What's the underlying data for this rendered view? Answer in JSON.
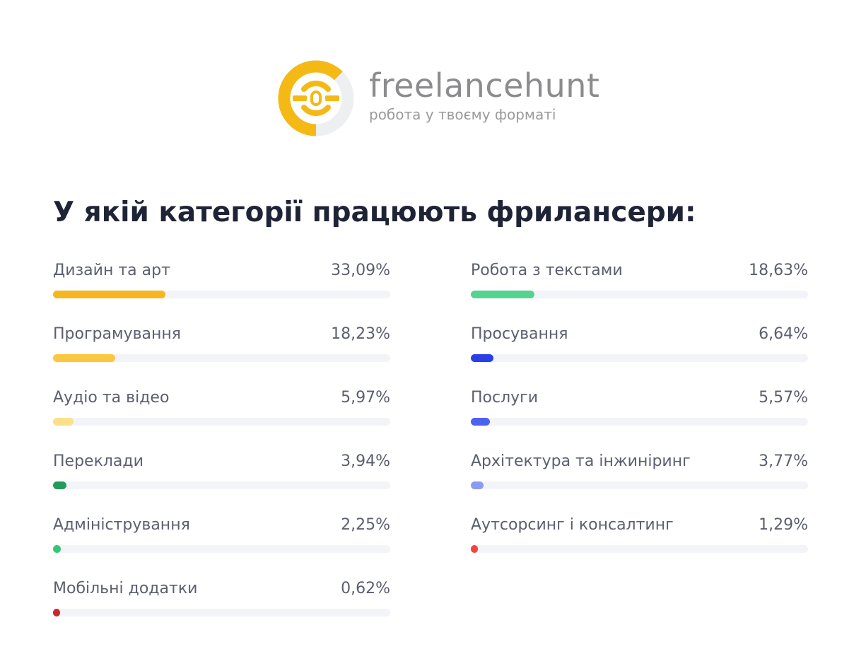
{
  "brand": {
    "name": "freelancehunt",
    "tagline": "робота у твоєму форматі",
    "colors": {
      "accent": "#f5b915",
      "ring": "#eeeff1",
      "text": "#8c8c8e"
    }
  },
  "chart_data": {
    "type": "bar",
    "title": "У якій категорії працюють фрилансери:",
    "unit": "%",
    "xlim": [
      0,
      100
    ],
    "columns": [
      {
        "items": [
          {
            "label": "Дизайн та арт",
            "value": 33.09,
            "display": "33,09%",
            "color": "#f5b620"
          },
          {
            "label": "Програмування",
            "value": 18.23,
            "display": "18,23%",
            "color": "#fdc640"
          },
          {
            "label": "Аудіо та відео",
            "value": 5.97,
            "display": "5,97%",
            "color": "#fde08a"
          },
          {
            "label": "Переклади",
            "value": 3.94,
            "display": "3,94%",
            "color": "#239b5a"
          },
          {
            "label": "Адміністрування",
            "value": 2.25,
            "display": "2,25%",
            "color": "#33c774"
          },
          {
            "label": "Мобільні додатки",
            "value": 0.62,
            "display": "0,62%",
            "color": "#c62a2a"
          }
        ]
      },
      {
        "items": [
          {
            "label": "Робота з текстами",
            "value": 18.63,
            "display": "18,63%",
            "color": "#55d48f"
          },
          {
            "label": "Просування",
            "value": 6.64,
            "display": "6,64%",
            "color": "#2a3fe8"
          },
          {
            "label": "Послуги",
            "value": 5.57,
            "display": "5,57%",
            "color": "#4b63ee"
          },
          {
            "label": "Архітектура та інжиніринг",
            "value": 3.77,
            "display": "3,77%",
            "color": "#8a9cf0"
          },
          {
            "label": "Аутсорсинг і консалтинг",
            "value": 1.29,
            "display": "1,29%",
            "color": "#f2453f"
          }
        ]
      }
    ]
  }
}
